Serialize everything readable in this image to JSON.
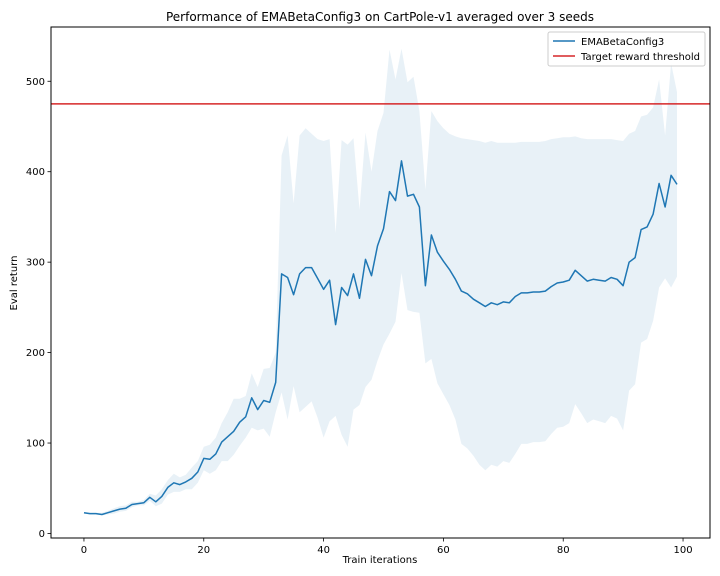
{
  "chart_data": {
    "type": "line",
    "title": "Performance of EMABetaConfig3 on CartPole-v1 averaged over 3 seeds",
    "xlabel": "Train iterations",
    "ylabel": "Eval return",
    "xlim": [
      -5.5,
      104.5
    ],
    "ylim": [
      -5,
      560
    ],
    "xticks": [
      0,
      20,
      40,
      60,
      80,
      100
    ],
    "yticks": [
      0,
      100,
      200,
      300,
      400,
      500
    ],
    "grid": false,
    "legend_position": "top-right",
    "colors": {
      "line": "#1f77b4",
      "band": "#1f77b4",
      "threshold": "#d62728"
    },
    "series": [
      {
        "name": "EMABetaConfig3",
        "x": [
          0,
          1,
          2,
          3,
          4,
          5,
          6,
          7,
          8,
          9,
          10,
          11,
          12,
          13,
          14,
          15,
          16,
          17,
          18,
          19,
          20,
          21,
          22,
          23,
          24,
          25,
          26,
          27,
          28,
          29,
          30,
          31,
          32,
          33,
          34,
          35,
          36,
          37,
          38,
          39,
          40,
          41,
          42,
          43,
          44,
          45,
          46,
          47,
          48,
          49,
          50,
          51,
          52,
          53,
          54,
          55,
          56,
          57,
          58,
          59,
          60,
          61,
          62,
          63,
          64,
          65,
          66,
          67,
          68,
          69,
          70,
          71,
          72,
          73,
          74,
          75,
          76,
          77,
          78,
          79,
          80,
          81,
          82,
          83,
          84,
          85,
          86,
          87,
          88,
          89,
          90,
          91,
          92,
          93,
          94,
          95,
          96,
          97,
          98,
          99
        ],
        "y": [
          23,
          22,
          22,
          21,
          23,
          25,
          27,
          28,
          32,
          33,
          34,
          40,
          35,
          41,
          51,
          56,
          54,
          57,
          61,
          68,
          83,
          82,
          88,
          101,
          107,
          113,
          123,
          129,
          150,
          137,
          147,
          145,
          167,
          287,
          283,
          264,
          287,
          294,
          294,
          282,
          270,
          280,
          231,
          272,
          263,
          287,
          260,
          303,
          285,
          318,
          337,
          378,
          368,
          412,
          373,
          375,
          361,
          274,
          330,
          311,
          301,
          292,
          281,
          268,
          265,
          259,
          255,
          251,
          255,
          253,
          256,
          255,
          262,
          266,
          266,
          267,
          267,
          268,
          273,
          277,
          278,
          280,
          291,
          285,
          279,
          281,
          280,
          279,
          283,
          281,
          274,
          300,
          305,
          336,
          339,
          353,
          387,
          361,
          396,
          386
        ]
      }
    ],
    "band": {
      "upper": [
        23,
        23,
        23,
        23,
        25,
        28,
        30,
        31,
        35,
        35,
        37,
        44,
        42,
        49,
        59,
        66,
        62,
        65,
        73,
        80,
        96,
        98,
        106,
        122,
        134,
        149,
        149,
        152,
        177,
        162,
        182,
        183,
        200,
        418,
        440,
        365,
        440,
        448,
        442,
        436,
        434,
        436,
        332,
        435,
        430,
        437,
        358,
        443,
        400,
        445,
        465,
        535,
        502,
        536,
        499,
        505,
        467,
        380,
        467,
        456,
        448,
        442,
        439,
        437,
        436,
        435,
        434,
        432,
        434,
        432,
        432,
        432,
        432,
        433,
        433,
        433,
        433,
        434,
        436,
        437,
        438,
        438,
        439,
        437,
        436,
        436,
        436,
        436,
        436,
        435,
        434,
        442,
        445,
        461,
        463,
        471,
        502,
        440,
        520,
        488
      ],
      "lower": [
        22,
        21,
        21,
        20,
        21,
        22,
        24,
        25,
        29,
        31,
        31,
        36,
        30,
        33,
        43,
        46,
        46,
        49,
        49,
        56,
        70,
        66,
        70,
        80,
        80,
        87,
        97,
        106,
        117,
        114,
        116,
        107,
        134,
        156,
        126,
        163,
        134,
        140,
        146,
        128,
        106,
        124,
        130,
        109,
        96,
        137,
        142,
        162,
        170,
        191,
        209,
        221,
        234,
        288,
        247,
        245,
        244,
        188,
        193,
        166,
        154,
        142,
        126,
        99,
        94,
        86,
        76,
        70,
        76,
        74,
        80,
        78,
        88,
        99,
        99,
        101,
        101,
        102,
        110,
        117,
        118,
        122,
        143,
        133,
        122,
        126,
        124,
        122,
        130,
        127,
        114,
        158,
        165,
        211,
        215,
        235,
        272,
        282,
        272,
        284
      ]
    },
    "threshold": {
      "name": "Target reward threshold",
      "y": 475
    }
  }
}
